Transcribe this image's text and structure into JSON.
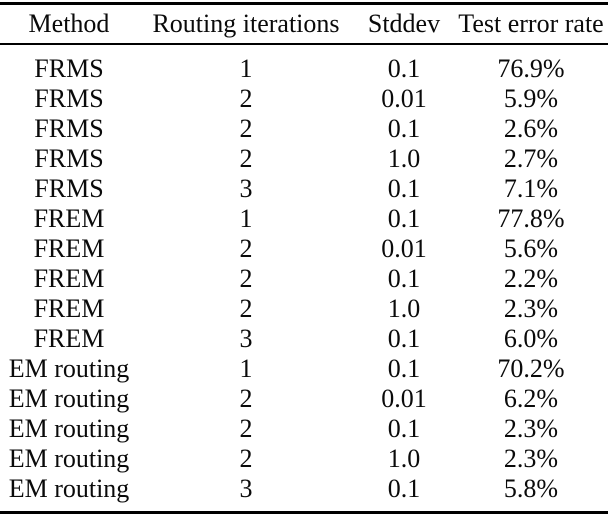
{
  "table": {
    "columns": [
      "Method",
      "Routing iterations",
      "Stddev",
      "Test error rate"
    ],
    "rows": [
      [
        "FRMS",
        "1",
        "0.1",
        "76.9%"
      ],
      [
        "FRMS",
        "2",
        "0.01",
        "5.9%"
      ],
      [
        "FRMS",
        "2",
        "0.1",
        "2.6%"
      ],
      [
        "FRMS",
        "2",
        "1.0",
        "2.7%"
      ],
      [
        "FRMS",
        "3",
        "0.1",
        "7.1%"
      ],
      [
        "FREM",
        "1",
        "0.1",
        "77.8%"
      ],
      [
        "FREM",
        "2",
        "0.01",
        "5.6%"
      ],
      [
        "FREM",
        "2",
        "0.1",
        "2.2%"
      ],
      [
        "FREM",
        "2",
        "1.0",
        "2.3%"
      ],
      [
        "FREM",
        "3",
        "0.1",
        "6.0%"
      ],
      [
        "EM routing",
        "1",
        "0.1",
        "70.2%"
      ],
      [
        "EM routing",
        "2",
        "0.01",
        "6.2%"
      ],
      [
        "EM routing",
        "2",
        "0.1",
        "2.3%"
      ],
      [
        "EM routing",
        "2",
        "1.0",
        "2.3%"
      ],
      [
        "EM routing",
        "3",
        "0.1",
        "5.8%"
      ]
    ],
    "text_color": "#0a0a0a",
    "rule_color": "#000000",
    "background_color": "#ffffff"
  }
}
